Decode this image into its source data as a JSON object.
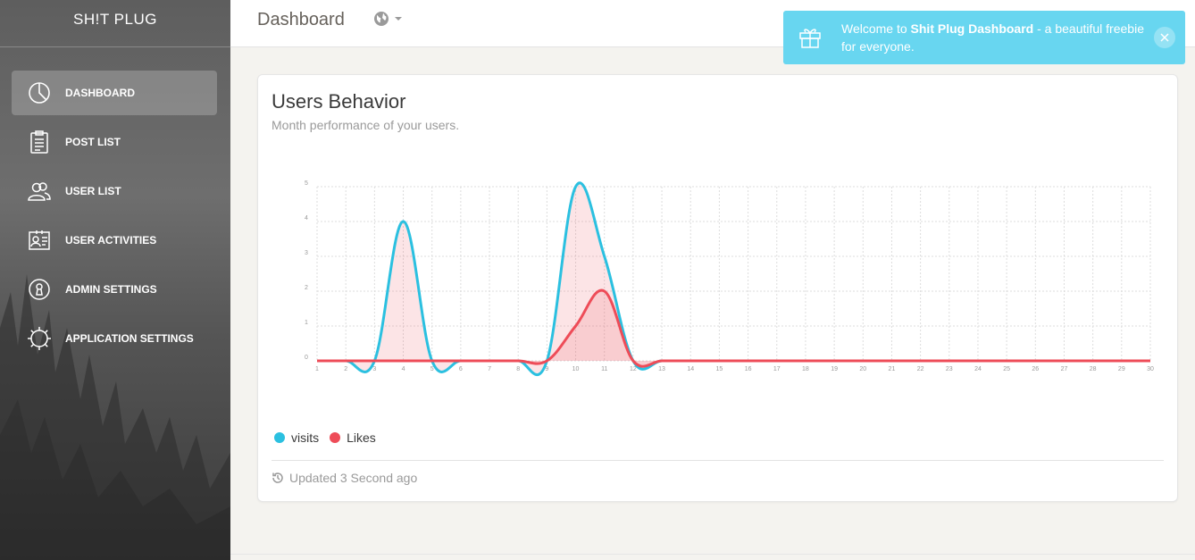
{
  "app": {
    "brand": "SH!T PLUG"
  },
  "sidebar": {
    "items": [
      {
        "label": "DASHBOARD",
        "icon": "pie-chart-icon",
        "active": true
      },
      {
        "label": "POST LIST",
        "icon": "clipboard-icon"
      },
      {
        "label": "USER LIST",
        "icon": "users-icon"
      },
      {
        "label": "USER ACTIVITIES",
        "icon": "id-card-icon"
      },
      {
        "label": "ADMIN SETTINGS",
        "icon": "lock-badge-icon"
      },
      {
        "label": "APPLICATION SETTINGS",
        "icon": "gear-icon"
      }
    ]
  },
  "header": {
    "title": "Dashboard",
    "globe_icon": "globe-icon"
  },
  "notification": {
    "prefix": "Welcome to ",
    "strong": "Shit Plug Dashboard",
    "suffix": " - a beautiful freebie for everyone.",
    "icon": "gift-icon"
  },
  "card": {
    "title": "Users Behavior",
    "subtitle": "Month performance of your users.",
    "updated": "Updated 3 Second ago",
    "updated_icon": "history-icon"
  },
  "chart_data": {
    "type": "area",
    "x": [
      1,
      2,
      3,
      4,
      5,
      6,
      7,
      8,
      9,
      10,
      11,
      12,
      13,
      14,
      15,
      16,
      17,
      18,
      19,
      20,
      21,
      22,
      23,
      24,
      25,
      26,
      27,
      28,
      29,
      30
    ],
    "ylim": [
      0,
      5
    ],
    "yticks": [
      0,
      1,
      2,
      3,
      4,
      5
    ],
    "grid": true,
    "legend": "bottom-left",
    "series": [
      {
        "name": "visits",
        "color": "#2bc0e0",
        "values": [
          0,
          0,
          0,
          4,
          0,
          0,
          0,
          0,
          0,
          5,
          3,
          0,
          0,
          0,
          0,
          0,
          0,
          0,
          0,
          0,
          0,
          0,
          0,
          0,
          0,
          0,
          0,
          0,
          0,
          0
        ]
      },
      {
        "name": "Likes",
        "color": "#ee4c58",
        "values": [
          0,
          0,
          0,
          0,
          0,
          0,
          0,
          0,
          0,
          1,
          2,
          0,
          0,
          0,
          0,
          0,
          0,
          0,
          0,
          0,
          0,
          0,
          0,
          0,
          0,
          0,
          0,
          0,
          0,
          0
        ]
      }
    ]
  },
  "colors": {
    "accent": "#68d6f0",
    "visits": "#2bc0e0",
    "likes": "#ee4c58"
  }
}
